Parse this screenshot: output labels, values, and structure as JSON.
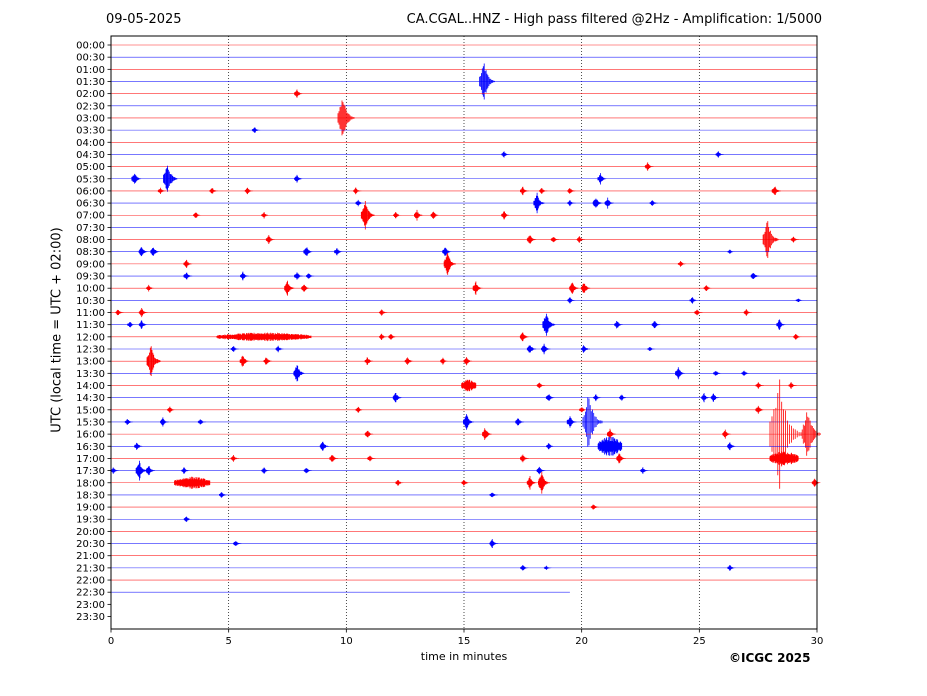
{
  "header": {
    "date": "09-05-2025",
    "title": "CA.CGAL..HNZ - High pass filtered @2Hz - Amplification: 1/5000"
  },
  "copyright": "©ICGC 2025",
  "chart_data": {
    "type": "line",
    "subtype": "helicorder",
    "title": "CA.CGAL..HNZ - High pass filtered @2Hz - Amplification: 1/5000",
    "date": "09-05-2025",
    "xlabel": "time in minutes",
    "ylabel": "UTC (local time = UTC + 02:00)",
    "xlim": [
      0,
      30
    ],
    "xticks": [
      0,
      5,
      10,
      15,
      20,
      25,
      30
    ],
    "vertical_grid_minutes": [
      5,
      10,
      15,
      20,
      25
    ],
    "grid": "vertical dotted",
    "colors": {
      "trace_a": "#ff0000",
      "trace_b": "#0000ff",
      "grid": "#000000"
    },
    "color_cycle": [
      "red",
      "blue"
    ],
    "rows": [
      "00:00",
      "00:30",
      "01:00",
      "01:30",
      "02:00",
      "02:30",
      "03:00",
      "03:30",
      "04:00",
      "04:30",
      "05:00",
      "05:30",
      "06:00",
      "06:30",
      "07:00",
      "07:30",
      "08:00",
      "08:30",
      "09:00",
      "09:30",
      "10:00",
      "10:30",
      "11:00",
      "11:30",
      "12:00",
      "12:30",
      "13:00",
      "13:30",
      "14:00",
      "14:30",
      "15:00",
      "15:30",
      "16:00",
      "16:30",
      "17:00",
      "17:30",
      "18:00",
      "18:30",
      "19:00",
      "19:30",
      "20:00",
      "20:30",
      "21:00",
      "21:30",
      "22:00",
      "22:30",
      "23:00",
      "23:30"
    ],
    "trace_end": {
      "row": "22:30",
      "minute": 19.5
    },
    "events": [
      {
        "row": "01:30",
        "minute": 15.85,
        "amp": 1.8
      },
      {
        "row": "02:00",
        "minute": 7.9,
        "amp": 0.4
      },
      {
        "row": "03:00",
        "minute": 9.85,
        "amp": 2.0
      },
      {
        "row": "03:30",
        "minute": 6.1,
        "amp": 0.3
      },
      {
        "row": "04:30",
        "minute": 16.7,
        "amp": 0.3
      },
      {
        "row": "04:30",
        "minute": 25.8,
        "amp": 0.3
      },
      {
        "row": "05:00",
        "minute": 22.8,
        "amp": 0.4
      },
      {
        "row": "05:30",
        "minute": 1.0,
        "amp": 0.6
      },
      {
        "row": "05:30",
        "minute": 2.4,
        "amp": 1.5
      },
      {
        "row": "05:30",
        "minute": 7.9,
        "amp": 0.4
      },
      {
        "row": "05:30",
        "minute": 20.8,
        "amp": 0.5
      },
      {
        "row": "06:00",
        "minute": 2.1,
        "amp": 0.3
      },
      {
        "row": "06:00",
        "minute": 4.3,
        "amp": 0.3
      },
      {
        "row": "06:00",
        "minute": 5.8,
        "amp": 0.3
      },
      {
        "row": "06:00",
        "minute": 10.4,
        "amp": 0.3
      },
      {
        "row": "06:00",
        "minute": 17.5,
        "amp": 0.4
      },
      {
        "row": "06:00",
        "minute": 18.3,
        "amp": 0.3
      },
      {
        "row": "06:00",
        "minute": 19.5,
        "amp": 0.3
      },
      {
        "row": "06:00",
        "minute": 28.2,
        "amp": 0.5
      },
      {
        "row": "06:30",
        "minute": 10.5,
        "amp": 0.3
      },
      {
        "row": "06:30",
        "minute": 18.1,
        "amp": 0.9
      },
      {
        "row": "06:30",
        "minute": 19.5,
        "amp": 0.3
      },
      {
        "row": "06:30",
        "minute": 20.6,
        "amp": 0.6
      },
      {
        "row": "06:30",
        "minute": 21.1,
        "amp": 0.5
      },
      {
        "row": "06:30",
        "minute": 23.0,
        "amp": 0.3
      },
      {
        "row": "07:00",
        "minute": 3.6,
        "amp": 0.3
      },
      {
        "row": "07:00",
        "minute": 6.5,
        "amp": 0.3
      },
      {
        "row": "07:00",
        "minute": 10.8,
        "amp": 1.4
      },
      {
        "row": "07:00",
        "minute": 12.1,
        "amp": 0.3
      },
      {
        "row": "07:00",
        "minute": 13.0,
        "amp": 0.5
      },
      {
        "row": "07:00",
        "minute": 13.7,
        "amp": 0.4
      },
      {
        "row": "07:00",
        "minute": 16.7,
        "amp": 0.4
      },
      {
        "row": "08:00",
        "minute": 6.7,
        "amp": 0.4
      },
      {
        "row": "08:00",
        "minute": 17.8,
        "amp": 0.5
      },
      {
        "row": "08:00",
        "minute": 18.8,
        "amp": 0.3
      },
      {
        "row": "08:00",
        "minute": 19.9,
        "amp": 0.3
      },
      {
        "row": "08:00",
        "minute": 27.9,
        "amp": 1.8
      },
      {
        "row": "08:00",
        "minute": 29.0,
        "amp": 0.3
      },
      {
        "row": "08:30",
        "minute": 1.3,
        "amp": 0.5
      },
      {
        "row": "08:30",
        "minute": 1.8,
        "amp": 0.5
      },
      {
        "row": "08:30",
        "minute": 8.3,
        "amp": 0.5
      },
      {
        "row": "08:30",
        "minute": 9.6,
        "amp": 0.4
      },
      {
        "row": "08:30",
        "minute": 14.2,
        "amp": 0.5
      },
      {
        "row": "08:30",
        "minute": 26.3,
        "amp": 0.2
      },
      {
        "row": "09:00",
        "minute": 3.2,
        "amp": 0.4
      },
      {
        "row": "09:00",
        "minute": 14.3,
        "amp": 1.1
      },
      {
        "row": "09:00",
        "minute": 24.2,
        "amp": 0.3
      },
      {
        "row": "09:30",
        "minute": 3.2,
        "amp": 0.4
      },
      {
        "row": "09:30",
        "minute": 5.6,
        "amp": 0.4
      },
      {
        "row": "09:30",
        "minute": 7.9,
        "amp": 0.4
      },
      {
        "row": "09:30",
        "minute": 8.4,
        "amp": 0.3
      },
      {
        "row": "09:30",
        "minute": 27.3,
        "amp": 0.4
      },
      {
        "row": "10:00",
        "minute": 1.6,
        "amp": 0.3
      },
      {
        "row": "10:00",
        "minute": 7.5,
        "amp": 0.7
      },
      {
        "row": "10:00",
        "minute": 8.2,
        "amp": 0.4
      },
      {
        "row": "10:00",
        "minute": 15.5,
        "amp": 0.6
      },
      {
        "row": "10:00",
        "minute": 19.6,
        "amp": 0.6
      },
      {
        "row": "10:00",
        "minute": 20.1,
        "amp": 0.6
      },
      {
        "row": "10:00",
        "minute": 25.3,
        "amp": 0.3
      },
      {
        "row": "10:30",
        "minute": 19.5,
        "amp": 0.3
      },
      {
        "row": "10:30",
        "minute": 24.7,
        "amp": 0.3
      },
      {
        "row": "10:30",
        "minute": 29.2,
        "amp": 0.2
      },
      {
        "row": "11:00",
        "minute": 0.3,
        "amp": 0.3
      },
      {
        "row": "11:00",
        "minute": 1.3,
        "amp": 0.4
      },
      {
        "row": "11:00",
        "minute": 11.5,
        "amp": 0.3
      },
      {
        "row": "11:00",
        "minute": 24.9,
        "amp": 0.3
      },
      {
        "row": "11:00",
        "minute": 27.0,
        "amp": 0.3
      },
      {
        "row": "11:30",
        "minute": 0.8,
        "amp": 0.3
      },
      {
        "row": "11:30",
        "minute": 1.3,
        "amp": 0.4
      },
      {
        "row": "11:30",
        "minute": 18.5,
        "amp": 1.2
      },
      {
        "row": "11:30",
        "minute": 21.5,
        "amp": 0.4
      },
      {
        "row": "11:30",
        "minute": 23.1,
        "amp": 0.4
      },
      {
        "row": "11:30",
        "minute": 28.4,
        "amp": 0.5
      },
      {
        "row": "12:00",
        "minute": 4.5,
        "amp": 0.35,
        "dur": 4.0
      },
      {
        "row": "12:00",
        "minute": 11.5,
        "amp": 0.3
      },
      {
        "row": "12:00",
        "minute": 11.9,
        "amp": 0.3
      },
      {
        "row": "12:00",
        "minute": 17.5,
        "amp": 0.5
      },
      {
        "row": "12:00",
        "minute": 29.1,
        "amp": 0.3
      },
      {
        "row": "12:30",
        "minute": 5.2,
        "amp": 0.3
      },
      {
        "row": "12:30",
        "minute": 7.1,
        "amp": 0.3
      },
      {
        "row": "12:30",
        "minute": 17.8,
        "amp": 0.5
      },
      {
        "row": "12:30",
        "minute": 18.4,
        "amp": 0.5
      },
      {
        "row": "12:30",
        "minute": 20.1,
        "amp": 0.4
      },
      {
        "row": "12:30",
        "minute": 22.9,
        "amp": 0.2
      },
      {
        "row": "13:00",
        "minute": 1.7,
        "amp": 1.5
      },
      {
        "row": "13:00",
        "minute": 5.6,
        "amp": 0.6
      },
      {
        "row": "13:00",
        "minute": 6.6,
        "amp": 0.4
      },
      {
        "row": "13:00",
        "minute": 10.9,
        "amp": 0.4
      },
      {
        "row": "13:00",
        "minute": 12.6,
        "amp": 0.4
      },
      {
        "row": "13:00",
        "minute": 14.1,
        "amp": 0.3
      },
      {
        "row": "13:00",
        "minute": 15.1,
        "amp": 0.4
      },
      {
        "row": "13:30",
        "minute": 7.9,
        "amp": 0.9
      },
      {
        "row": "13:30",
        "minute": 24.1,
        "amp": 0.6
      },
      {
        "row": "13:30",
        "minute": 25.7,
        "amp": 0.3
      },
      {
        "row": "13:30",
        "minute": 26.9,
        "amp": 0.3
      },
      {
        "row": "14:00",
        "minute": 14.9,
        "amp": 0.5,
        "dur": 0.6
      },
      {
        "row": "14:00",
        "minute": 18.2,
        "amp": 0.3
      },
      {
        "row": "14:00",
        "minute": 27.5,
        "amp": 0.3
      },
      {
        "row": "14:00",
        "minute": 28.9,
        "amp": 0.3
      },
      {
        "row": "14:30",
        "minute": 12.1,
        "amp": 0.5
      },
      {
        "row": "14:30",
        "minute": 18.6,
        "amp": 0.4
      },
      {
        "row": "14:30",
        "minute": 20.6,
        "amp": 0.3
      },
      {
        "row": "14:30",
        "minute": 21.7,
        "amp": 0.3
      },
      {
        "row": "14:30",
        "minute": 25.2,
        "amp": 0.4
      },
      {
        "row": "14:30",
        "minute": 25.6,
        "amp": 0.4
      },
      {
        "row": "15:00",
        "minute": 2.5,
        "amp": 0.3
      },
      {
        "row": "15:00",
        "minute": 10.5,
        "amp": 0.3
      },
      {
        "row": "15:00",
        "minute": 20.0,
        "amp": 0.3
      },
      {
        "row": "15:00",
        "minute": 27.5,
        "amp": 0.4
      },
      {
        "row": "15:30",
        "minute": 0.7,
        "amp": 0.3
      },
      {
        "row": "15:30",
        "minute": 2.2,
        "amp": 0.4
      },
      {
        "row": "15:30",
        "minute": 3.8,
        "amp": 0.3
      },
      {
        "row": "15:30",
        "minute": 15.1,
        "amp": 0.8
      },
      {
        "row": "15:30",
        "minute": 17.3,
        "amp": 0.4
      },
      {
        "row": "15:30",
        "minute": 19.5,
        "amp": 0.6
      },
      {
        "row": "15:30",
        "minute": 20.3,
        "amp": 2.6
      },
      {
        "row": "16:00",
        "minute": 10.9,
        "amp": 0.4
      },
      {
        "row": "16:00",
        "minute": 15.9,
        "amp": 0.6
      },
      {
        "row": "16:00",
        "minute": 21.2,
        "amp": 0.5
      },
      {
        "row": "16:00",
        "minute": 26.1,
        "amp": 0.4
      },
      {
        "row": "16:00",
        "minute": 28.4,
        "amp": 5.0
      },
      {
        "row": "16:00",
        "minute": 29.6,
        "amp": 2.4
      },
      {
        "row": "16:30",
        "minute": 1.1,
        "amp": 0.4
      },
      {
        "row": "16:30",
        "minute": 9.0,
        "amp": 0.5
      },
      {
        "row": "16:30",
        "minute": 18.6,
        "amp": 0.3
      },
      {
        "row": "16:30",
        "minute": 20.7,
        "amp": 0.8,
        "dur": 1.0
      },
      {
        "row": "16:30",
        "minute": 26.3,
        "amp": 0.4
      },
      {
        "row": "17:00",
        "minute": 5.2,
        "amp": 0.3
      },
      {
        "row": "17:00",
        "minute": 9.4,
        "amp": 0.4
      },
      {
        "row": "17:00",
        "minute": 11.0,
        "amp": 0.3
      },
      {
        "row": "17:00",
        "minute": 17.5,
        "amp": 0.4
      },
      {
        "row": "17:00",
        "minute": 21.6,
        "amp": 0.5
      },
      {
        "row": "17:00",
        "minute": 28.0,
        "amp": 0.6,
        "dur": 1.2
      },
      {
        "row": "17:30",
        "minute": 0.1,
        "amp": 0.3
      },
      {
        "row": "17:30",
        "minute": 1.2,
        "amp": 0.9
      },
      {
        "row": "17:30",
        "minute": 1.6,
        "amp": 0.5
      },
      {
        "row": "17:30",
        "minute": 3.1,
        "amp": 0.3
      },
      {
        "row": "17:30",
        "minute": 6.5,
        "amp": 0.3
      },
      {
        "row": "17:30",
        "minute": 8.3,
        "amp": 0.3
      },
      {
        "row": "17:30",
        "minute": 18.2,
        "amp": 0.4
      },
      {
        "row": "17:30",
        "minute": 22.6,
        "amp": 0.3
      },
      {
        "row": "18:00",
        "minute": 2.7,
        "amp": 0.5,
        "dur": 1.5
      },
      {
        "row": "18:00",
        "minute": 12.2,
        "amp": 0.3
      },
      {
        "row": "18:00",
        "minute": 15.0,
        "amp": 0.3
      },
      {
        "row": "18:00",
        "minute": 17.8,
        "amp": 0.6
      },
      {
        "row": "18:00",
        "minute": 18.3,
        "amp": 1.0
      },
      {
        "row": "18:00",
        "minute": 29.9,
        "amp": 0.4
      },
      {
        "row": "18:30",
        "minute": 4.7,
        "amp": 0.3
      },
      {
        "row": "18:30",
        "minute": 16.2,
        "amp": 0.3
      },
      {
        "row": "19:00",
        "minute": 20.5,
        "amp": 0.3
      },
      {
        "row": "19:30",
        "minute": 3.2,
        "amp": 0.3
      },
      {
        "row": "20:30",
        "minute": 5.3,
        "amp": 0.3
      },
      {
        "row": "20:30",
        "minute": 16.2,
        "amp": 0.4
      },
      {
        "row": "21:30",
        "minute": 17.5,
        "amp": 0.3
      },
      {
        "row": "21:30",
        "minute": 18.5,
        "amp": 0.2
      },
      {
        "row": "21:30",
        "minute": 26.3,
        "amp": 0.3
      }
    ]
  }
}
